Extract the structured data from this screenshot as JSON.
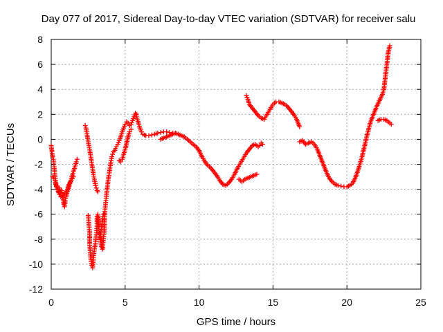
{
  "chart_data": {
    "type": "scatter",
    "title": "Day 077 of 2017, Sidereal Day-to-day VTEC variation (SDTVAR) for receiver salu",
    "xlabel": "GPS time / hours",
    "ylabel": "SDTVAR / TECUs",
    "xlim": [
      0,
      25
    ],
    "ylim": [
      -12,
      8
    ],
    "x_ticks": [
      0,
      5,
      10,
      15,
      20,
      25
    ],
    "y_ticks": [
      -12,
      -10,
      -8,
      -6,
      -4,
      -2,
      0,
      2,
      4,
      6,
      8
    ],
    "grid": true,
    "marker": "+",
    "series_color": "#ff0000",
    "series": [
      {
        "points": [
          [
            0.0,
            -0.5
          ],
          [
            0.05,
            -1.0
          ],
          [
            0.1,
            -1.4
          ],
          [
            0.15,
            -1.6
          ],
          [
            0.2,
            -2.2
          ],
          [
            0.25,
            -3.0
          ],
          [
            0.3,
            -3.3
          ],
          [
            0.35,
            -3.8
          ],
          [
            0.45,
            -4.0
          ],
          [
            0.5,
            -4.2
          ],
          [
            0.55,
            -3.9
          ],
          [
            0.6,
            -4.4
          ],
          [
            0.7,
            -4.1
          ],
          [
            0.8,
            -4.8
          ],
          [
            0.85,
            -5.2
          ],
          [
            0.9,
            -5.4
          ],
          [
            0.95,
            -4.9
          ],
          [
            1.0,
            -4.6
          ],
          [
            1.1,
            -4.2
          ],
          [
            1.2,
            -3.8
          ],
          [
            1.3,
            -3.4
          ],
          [
            1.4,
            -3.0
          ],
          [
            1.5,
            -2.6
          ],
          [
            1.6,
            -2.2
          ],
          [
            1.7,
            -1.8
          ],
          [
            1.75,
            -1.6
          ],
          [
            0.1,
            -3.0
          ],
          [
            0.15,
            -3.1
          ],
          [
            0.25,
            -3.3
          ],
          [
            0.3,
            -3.6
          ],
          [
            0.4,
            -3.9
          ],
          [
            0.55,
            -4.4
          ],
          [
            0.65,
            -4.6
          ],
          [
            0.75,
            -4.5
          ],
          [
            0.9,
            -4.3
          ],
          [
            1.0,
            -4.3
          ],
          [
            1.1,
            -4.0
          ],
          [
            1.2,
            -3.6
          ],
          [
            1.35,
            -3.3
          ],
          [
            1.5,
            -3.0
          ]
        ]
      },
      {
        "points": [
          [
            2.3,
            1.1
          ],
          [
            2.35,
            0.9
          ],
          [
            2.4,
            0.6
          ],
          [
            2.45,
            0.2
          ],
          [
            2.5,
            -0.2
          ],
          [
            2.55,
            -0.5
          ],
          [
            2.6,
            -0.8
          ],
          [
            2.65,
            -1.2
          ],
          [
            2.7,
            -1.6
          ],
          [
            2.75,
            -2.0
          ],
          [
            2.8,
            -2.4
          ],
          [
            2.85,
            -2.8
          ],
          [
            2.9,
            -3.1
          ],
          [
            2.95,
            -3.4
          ],
          [
            3.0,
            -3.7
          ],
          [
            3.05,
            -3.9
          ],
          [
            3.1,
            -4.1
          ],
          [
            3.15,
            -4.2
          ]
        ]
      },
      {
        "points": [
          [
            2.5,
            -6.1
          ],
          [
            2.55,
            -6.8
          ],
          [
            2.6,
            -7.5
          ],
          [
            2.6,
            -8.5
          ],
          [
            2.65,
            -9.2
          ],
          [
            2.7,
            -9.8
          ],
          [
            2.75,
            -10.1
          ],
          [
            2.8,
            -10.3
          ],
          [
            2.85,
            -9.6
          ],
          [
            2.9,
            -9.0
          ],
          [
            2.95,
            -8.6
          ],
          [
            3.0,
            -8.2
          ],
          [
            3.05,
            -7.6
          ],
          [
            3.1,
            -7.0
          ],
          [
            3.1,
            -6.2
          ],
          [
            3.15,
            -6.0
          ],
          [
            3.2,
            -6.8
          ],
          [
            3.25,
            -7.4
          ],
          [
            3.3,
            -7.9
          ],
          [
            3.35,
            -8.3
          ],
          [
            3.4,
            -8.6
          ],
          [
            3.45,
            -8.8
          ],
          [
            3.5,
            -8.4
          ],
          [
            3.55,
            -7.8
          ],
          [
            3.6,
            -7.2
          ],
          [
            3.6,
            -6.2
          ],
          [
            3.65,
            -5.5
          ],
          [
            3.7,
            -4.9
          ],
          [
            3.75,
            -4.3
          ],
          [
            3.8,
            -3.8
          ],
          [
            3.85,
            -3.3
          ],
          [
            3.9,
            -2.9
          ],
          [
            3.95,
            -2.5
          ],
          [
            4.0,
            -2.1
          ],
          [
            4.05,
            -1.7
          ],
          [
            4.1,
            -1.4
          ],
          [
            4.15,
            -1.2
          ],
          [
            4.2,
            -1.0
          ],
          [
            4.3,
            -0.9
          ],
          [
            4.4,
            -0.6
          ],
          [
            4.5,
            -0.4
          ],
          [
            4.6,
            -0.1
          ],
          [
            4.7,
            0.2
          ],
          [
            4.8,
            0.6
          ],
          [
            4.9,
            0.9
          ],
          [
            5.0,
            1.2
          ],
          [
            5.1,
            1.4
          ],
          [
            5.2,
            1.3
          ],
          [
            5.3,
            1.1
          ],
          [
            5.4,
            1.2
          ],
          [
            5.5,
            1.5
          ],
          [
            5.6,
            1.8
          ],
          [
            5.7,
            2.1
          ],
          [
            5.75,
            2.0
          ],
          [
            5.8,
            1.7
          ],
          [
            5.9,
            1.3
          ],
          [
            6.0,
            0.9
          ],
          [
            6.1,
            0.6
          ],
          [
            6.2,
            0.4
          ],
          [
            6.4,
            0.3
          ],
          [
            6.6,
            0.3
          ],
          [
            6.8,
            0.35
          ],
          [
            7.0,
            0.4
          ],
          [
            7.2,
            0.5
          ],
          [
            7.4,
            0.55
          ],
          [
            7.6,
            0.6
          ],
          [
            7.8,
            0.6
          ],
          [
            8.0,
            0.55
          ],
          [
            8.2,
            0.5
          ],
          [
            8.4,
            0.5
          ],
          [
            8.6,
            0.4
          ],
          [
            8.8,
            0.3
          ],
          [
            9.0,
            0.2
          ],
          [
            9.2,
            0.0
          ],
          [
            9.4,
            -0.2
          ],
          [
            9.6,
            -0.4
          ],
          [
            9.8,
            -0.6
          ],
          [
            10.0,
            -0.9
          ],
          [
            10.2,
            -1.4
          ],
          [
            10.4,
            -1.8
          ],
          [
            10.6,
            -2.1
          ],
          [
            10.8,
            -2.3
          ],
          [
            11.0,
            -2.6
          ],
          [
            11.2,
            -2.9
          ],
          [
            11.4,
            -3.3
          ],
          [
            11.6,
            -3.6
          ],
          [
            11.8,
            -3.7
          ],
          [
            12.0,
            -3.5
          ],
          [
            12.2,
            -3.2
          ],
          [
            12.4,
            -2.8
          ],
          [
            12.6,
            -2.3
          ],
          [
            12.8,
            -1.9
          ],
          [
            13.0,
            -1.5
          ],
          [
            13.2,
            -1.1
          ],
          [
            13.4,
            -0.8
          ],
          [
            13.6,
            -0.5
          ],
          [
            13.8,
            -0.4
          ],
          [
            14.0,
            -0.6
          ],
          [
            14.1,
            -0.5
          ],
          [
            14.2,
            -0.3
          ],
          [
            14.3,
            -0.4
          ]
        ]
      },
      {
        "points": [
          [
            3.3,
            -8.0
          ],
          [
            3.35,
            -7.5
          ],
          [
            3.4,
            -7.1
          ],
          [
            3.45,
            -6.6
          ],
          [
            3.5,
            -6.2
          ],
          [
            3.55,
            -6.0
          ],
          [
            3.5,
            -8.7
          ]
        ]
      },
      {
        "points": [
          [
            4.6,
            -1.7
          ],
          [
            4.7,
            -1.8
          ],
          [
            4.8,
            -1.6
          ],
          [
            4.9,
            -1.2
          ],
          [
            5.0,
            -0.8
          ],
          [
            5.1,
            -0.3
          ],
          [
            5.2,
            0.2
          ],
          [
            5.3,
            0.6
          ],
          [
            5.4,
            0.8
          ]
        ]
      },
      {
        "points": [
          [
            7.4,
            0.0
          ],
          [
            7.6,
            0.1
          ],
          [
            7.8,
            0.2
          ],
          [
            8.0,
            0.3
          ],
          [
            8.2,
            0.4
          ],
          [
            8.3,
            0.45
          ]
        ]
      },
      {
        "points": [
          [
            12.7,
            -3.2
          ],
          [
            12.9,
            -3.4
          ],
          [
            13.1,
            -3.2
          ],
          [
            13.3,
            -3.1
          ],
          [
            13.5,
            -3.0
          ],
          [
            13.7,
            -2.9
          ],
          [
            13.9,
            -2.8
          ]
        ]
      },
      {
        "points": [
          [
            13.2,
            3.5
          ],
          [
            13.3,
            3.2
          ],
          [
            13.4,
            2.8
          ],
          [
            13.6,
            2.5
          ],
          [
            13.8,
            2.2
          ],
          [
            14.0,
            1.9
          ],
          [
            14.2,
            1.7
          ],
          [
            14.4,
            1.6
          ],
          [
            14.6,
            2.0
          ],
          [
            14.8,
            2.4
          ],
          [
            15.0,
            2.8
          ],
          [
            15.2,
            3.0
          ],
          [
            15.4,
            3.0
          ],
          [
            15.6,
            2.9
          ],
          [
            15.8,
            2.8
          ],
          [
            16.0,
            2.6
          ],
          [
            16.2,
            2.3
          ],
          [
            16.4,
            2.0
          ],
          [
            16.6,
            1.6
          ],
          [
            16.8,
            1.0
          ]
        ]
      },
      {
        "points": [
          [
            16.8,
            -0.2
          ],
          [
            17.0,
            -0.1
          ],
          [
            17.2,
            -0.4
          ],
          [
            17.4,
            -0.3
          ],
          [
            17.6,
            -0.2
          ],
          [
            17.8,
            -0.4
          ],
          [
            18.0,
            -0.8
          ],
          [
            18.2,
            -1.4
          ],
          [
            18.4,
            -2.0
          ],
          [
            18.6,
            -2.6
          ],
          [
            18.8,
            -3.1
          ],
          [
            19.0,
            -3.4
          ],
          [
            19.2,
            -3.6
          ],
          [
            19.4,
            -3.7
          ],
          [
            19.6,
            -3.75
          ],
          [
            19.8,
            -3.8
          ],
          [
            20.0,
            -3.8
          ],
          [
            20.2,
            -3.7
          ],
          [
            20.4,
            -3.5
          ],
          [
            20.6,
            -3.0
          ],
          [
            20.8,
            -2.3
          ],
          [
            21.0,
            -1.5
          ],
          [
            21.2,
            -0.5
          ],
          [
            21.4,
            0.5
          ],
          [
            21.6,
            1.4
          ],
          [
            21.8,
            2.0
          ],
          [
            22.0,
            2.6
          ],
          [
            22.2,
            3.1
          ],
          [
            22.4,
            3.6
          ],
          [
            22.5,
            4.0
          ],
          [
            22.6,
            5.0
          ],
          [
            22.7,
            6.0
          ],
          [
            22.8,
            7.0
          ],
          [
            22.9,
            7.5
          ]
        ]
      },
      {
        "points": [
          [
            22.1,
            1.5
          ],
          [
            22.3,
            1.6
          ],
          [
            22.5,
            1.6
          ],
          [
            22.7,
            1.5
          ],
          [
            22.9,
            1.3
          ],
          [
            23.0,
            1.2
          ]
        ]
      }
    ]
  }
}
